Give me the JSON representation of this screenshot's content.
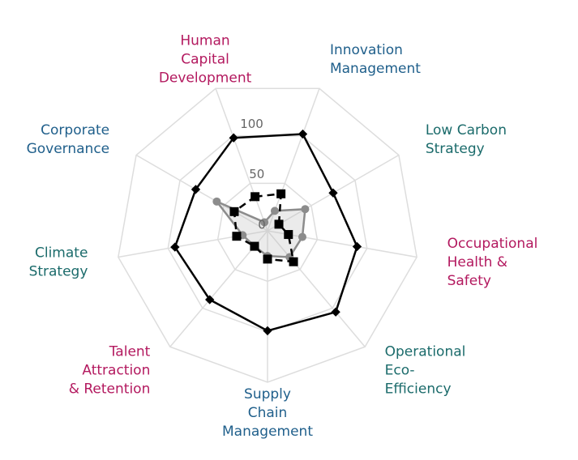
{
  "chart_data": {
    "type": "radar",
    "categories": [
      [
        "Human",
        "Capital",
        "Development"
      ],
      [
        "Innovation",
        "Management"
      ],
      [
        "Low Carbon",
        "Strategy"
      ],
      [
        "Occupational",
        "Health &",
        "Safety"
      ],
      [
        "Operational",
        "Eco-",
        "Efficiency"
      ],
      [
        "Supply",
        "Chain",
        "Management"
      ],
      [
        "Talent",
        "Attraction",
        "& Retention"
      ],
      [
        "Climate",
        "Strategy"
      ],
      [
        "Corporate",
        "Governance"
      ]
    ],
    "label_colors": [
      "#b3195f",
      "#1f5f8b",
      "#1b6b6b",
      "#b3195f",
      "#1b6b6b",
      "#1f5f8b",
      "#b3195f",
      "#1b6b6b",
      "#1f5f8b"
    ],
    "start_angle": -20,
    "rlim": [
      0,
      150
    ],
    "rticks": [
      0,
      50,
      100
    ],
    "grid": true,
    "series": [
      {
        "color": "#000000",
        "marker": "diamond",
        "dash": false,
        "fill": false,
        "values": [
          98,
          102,
          75,
          90,
          105,
          99,
          89,
          93,
          82
        ]
      },
      {
        "color": "#000000",
        "marker": "square",
        "dash": true,
        "fill": false,
        "values": [
          36,
          39,
          13,
          21,
          40,
          28,
          20,
          31,
          38
        ]
      },
      {
        "color": "#8c8c8c",
        "marker": "circle",
        "dash": false,
        "fill": true,
        "values": [
          9,
          21,
          43,
          35,
          34,
          25,
          20,
          25,
          58
        ]
      }
    ]
  }
}
